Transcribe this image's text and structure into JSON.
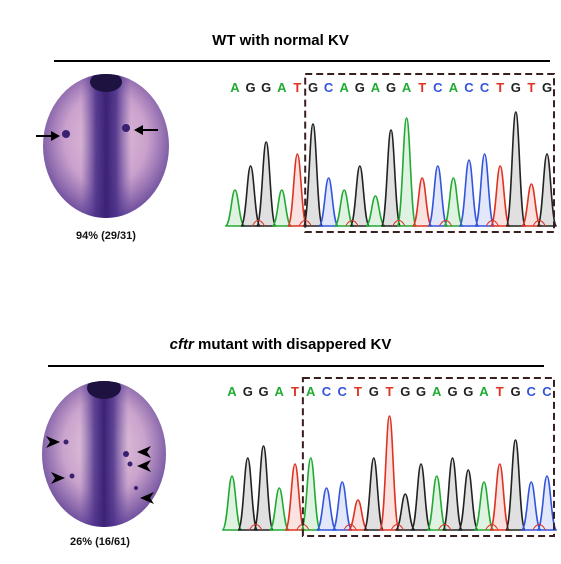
{
  "panels": [
    {
      "title_main": "WT with normal KV",
      "title_italic": "",
      "caption": "94% (29/31)",
      "bases": [
        "A",
        "G",
        "G",
        "A",
        "T",
        "G",
        "C",
        "A",
        "G",
        "A",
        "G",
        "A",
        "T",
        "C",
        "A",
        "C",
        "C",
        "T",
        "G",
        "T",
        "G"
      ],
      "peaks": [
        0.3,
        0.5,
        0.7,
        0.3,
        0.6,
        0.85,
        0.4,
        0.3,
        0.5,
        0.25,
        0.8,
        0.9,
        0.4,
        0.5,
        0.4,
        0.55,
        0.6,
        0.5,
        0.95,
        0.35,
        0.6
      ],
      "box_start": 5
    },
    {
      "title_main": " mutant with disappered KV",
      "title_italic": "cftr",
      "caption": "26% (16/61)",
      "bases": [
        "A",
        "G",
        "G",
        "A",
        "T",
        "A",
        "C",
        "C",
        "T",
        "G",
        "T",
        "G",
        "G",
        "A",
        "G",
        "G",
        "A",
        "T",
        "G",
        "C",
        "C"
      ],
      "peaks": [
        0.45,
        0.6,
        0.7,
        0.35,
        0.55,
        0.6,
        0.35,
        0.4,
        0.25,
        0.6,
        0.95,
        0.3,
        0.55,
        0.45,
        0.6,
        0.5,
        0.4,
        0.55,
        0.75,
        0.4,
        0.45
      ],
      "box_start": 5
    }
  ],
  "colors": {
    "A": "#22aa33",
    "C": "#3355dd",
    "G": "#222222",
    "T": "#dd3322"
  }
}
